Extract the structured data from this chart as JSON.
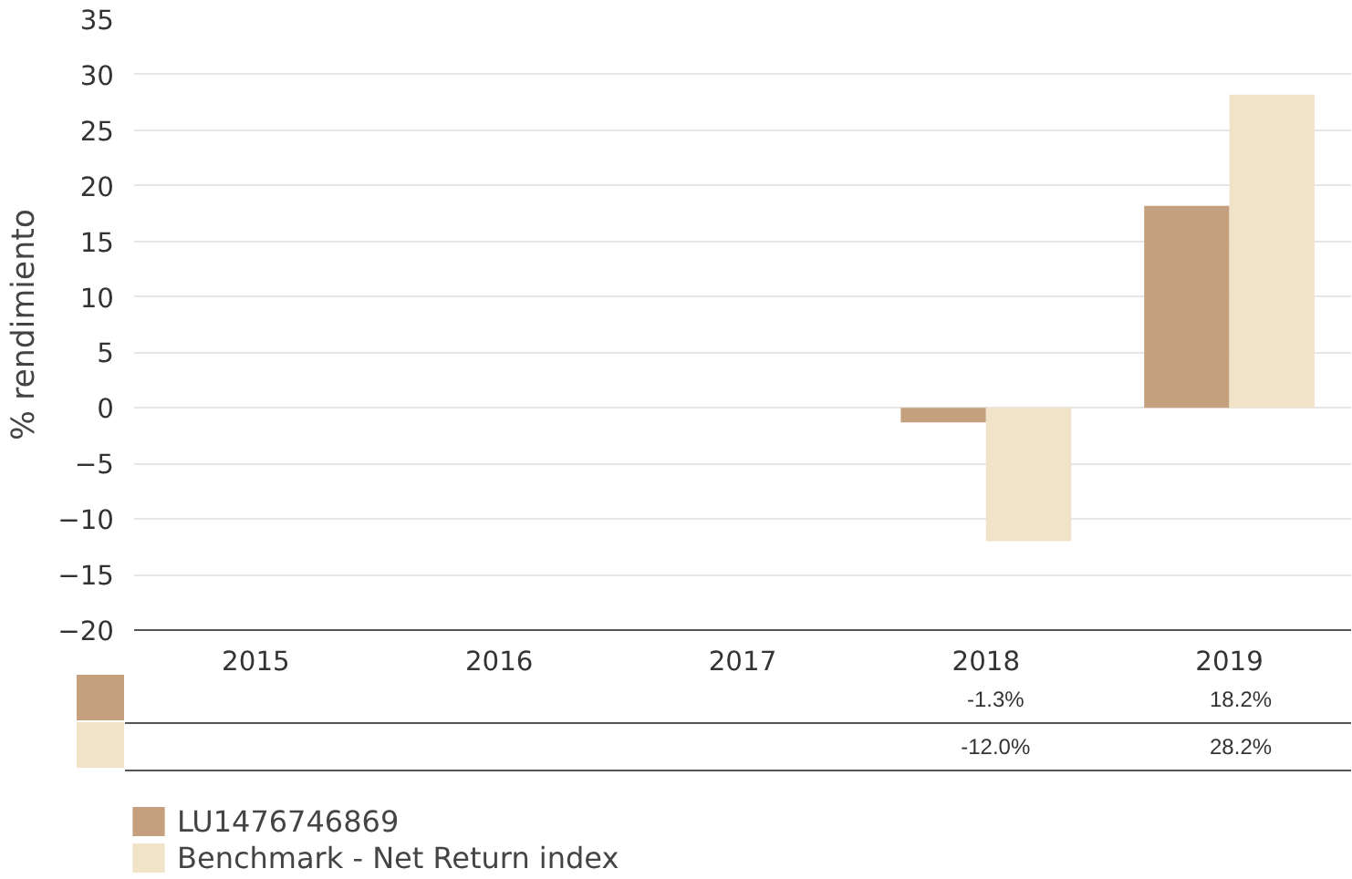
{
  "chart_data": {
    "type": "bar",
    "ylabel": "% rendimiento",
    "categories": [
      "2015",
      "2016",
      "2017",
      "2018",
      "2019"
    ],
    "series": [
      {
        "name": "LU1476746869",
        "color": "#c4a07f",
        "values": [
          null,
          null,
          null,
          -1.3,
          18.2
        ],
        "value_labels": [
          null,
          null,
          null,
          "-1.3%",
          "18.2%"
        ]
      },
      {
        "name": "Benchmark - Net Return index",
        "color": "#f0e3c7",
        "values": [
          null,
          null,
          null,
          -12.0,
          28.2
        ],
        "value_labels": [
          null,
          null,
          null,
          "-12.0%",
          "28.2%"
        ]
      }
    ],
    "ylim": [
      -20,
      35
    ],
    "yticks": [
      -20,
      -15,
      -10,
      -5,
      0,
      5,
      10,
      15,
      20,
      25,
      30,
      35
    ],
    "grid": "y",
    "legend": "bottom"
  }
}
